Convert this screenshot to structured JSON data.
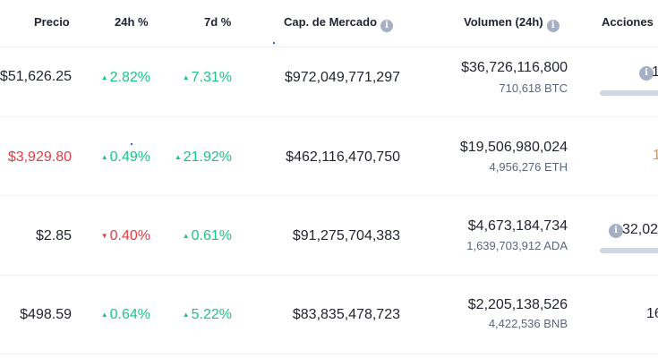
{
  "header": {
    "price": "Precio",
    "change_24h": "24h %",
    "change_7d": "7d %",
    "market_cap": "Cap. de Mercado",
    "volume": "Volumen (24h)",
    "actions": "Acciones"
  },
  "info_glyph": "i",
  "colors": {
    "up": "#16c784",
    "down": "#ea3943",
    "muted": "#58667e"
  },
  "rows": [
    {
      "price": "$51,626.25",
      "price_color": "#222531",
      "change_24h": "2.82%",
      "dir_24h": "up",
      "change_7d": "7.31%",
      "dir_7d": "up",
      "market_cap": "$972,049,771,297",
      "volume": "$36,726,116,800",
      "volume_coin": "710,618 BTC",
      "actions": "1"
    },
    {
      "price": "$3,929.80",
      "price_color": "#ea3943",
      "change_24h": "0.49%",
      "dir_24h": "up",
      "change_7d": "21.92%",
      "dir_7d": "up",
      "market_cap": "$462,116,470,750",
      "volume": "$19,506,980,024",
      "volume_coin": "4,956,276 ETH",
      "actions": "1"
    },
    {
      "price": "$2.85",
      "price_color": "#222531",
      "change_24h": "0.40%",
      "dir_24h": "down",
      "change_7d": "0.61%",
      "dir_7d": "up",
      "market_cap": "$91,275,704,383",
      "volume": "$4,673,184,734",
      "volume_coin": "1,639,703,912 ADA",
      "actions": "32,02"
    },
    {
      "price": "$498.59",
      "price_color": "#222531",
      "change_24h": "0.64%",
      "dir_24h": "up",
      "change_7d": "5.22%",
      "dir_7d": "up",
      "market_cap": "$83,835,478,723",
      "volume": "$2,205,138,526",
      "volume_coin": "4,422,536 BNB",
      "actions": "16"
    }
  ]
}
